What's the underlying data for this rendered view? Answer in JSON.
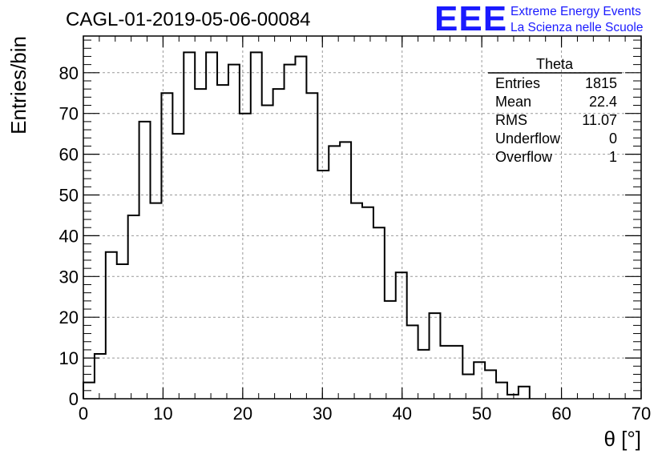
{
  "title": "CAGL-01-2019-05-06-00084",
  "logo": {
    "mark": "EEE",
    "line1": "Extreme Energy Events",
    "line2": "La Scienza nelle Scuole",
    "color": "#1a1aff"
  },
  "stats": {
    "name": "Theta",
    "rows": [
      {
        "label": "Entries",
        "value": "1815"
      },
      {
        "label": "Mean",
        "value": "22.4"
      },
      {
        "label": "RMS",
        "value": "11.07"
      },
      {
        "label": "Underflow",
        "value": "0"
      },
      {
        "label": "Overflow",
        "value": "1"
      }
    ]
  },
  "chart_data": {
    "type": "histogram",
    "xlabel": "θ [°]",
    "ylabel": "Entries/bin",
    "xlim": [
      0,
      70
    ],
    "ylim": [
      0,
      89
    ],
    "bin_width": 1.4,
    "bin_edges_start": 0,
    "values": [
      4,
      11,
      36,
      33,
      45,
      68,
      48,
      75,
      65,
      85,
      76,
      85,
      77,
      82,
      70,
      85,
      72,
      76,
      82,
      84,
      75,
      56,
      62,
      63,
      48,
      47,
      42,
      24,
      31,
      18,
      12,
      21,
      13,
      13,
      6,
      9,
      7,
      4,
      1,
      3
    ],
    "xticks": [
      0,
      10,
      20,
      30,
      40,
      50,
      60,
      70
    ],
    "yticks": [
      0,
      10,
      20,
      30,
      40,
      50,
      60,
      70,
      80
    ],
    "grid": true
  }
}
